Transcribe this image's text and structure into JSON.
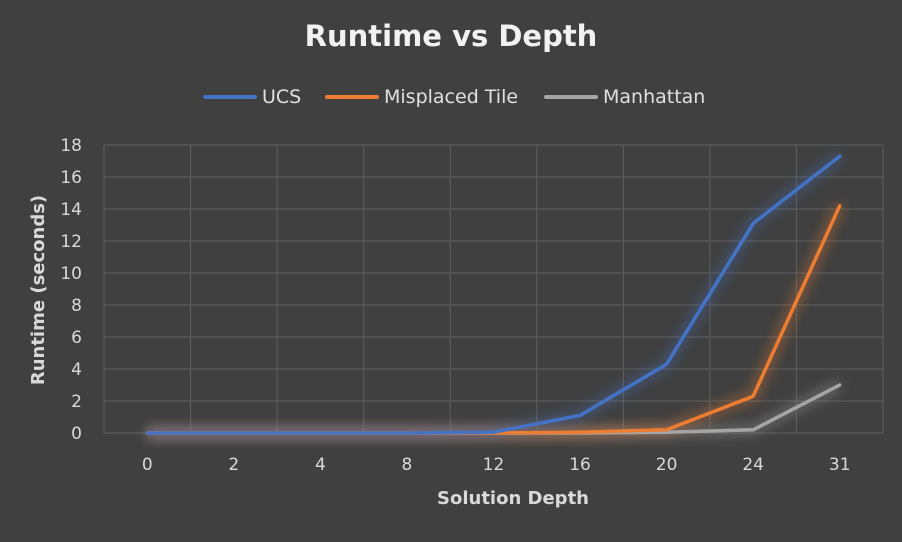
{
  "chart_data": {
    "type": "line",
    "title": "Runtime vs Depth",
    "xlabel": "Solution Depth",
    "ylabel": "Runtime (seconds)",
    "categories": [
      "0",
      "2",
      "4",
      "8",
      "12",
      "16",
      "20",
      "24",
      "31"
    ],
    "ylim": [
      0,
      18
    ],
    "yticks": [
      0,
      2,
      4,
      6,
      8,
      10,
      12,
      14,
      16,
      18
    ],
    "grid": true,
    "legend_position": "top",
    "series": [
      {
        "name": "UCS",
        "color": "#4472C4",
        "values": [
          0,
          0,
          0,
          0,
          0.05,
          1.1,
          4.3,
          13.1,
          17.3
        ]
      },
      {
        "name": "Misplaced Tile",
        "color": "#ED7D31",
        "values": [
          0,
          0,
          0,
          0,
          0,
          0.05,
          0.2,
          2.3,
          14.2
        ]
      },
      {
        "name": "Manhattan",
        "color": "#A5A5A5",
        "values": [
          0,
          0,
          0,
          0,
          0,
          0,
          0.05,
          0.2,
          3.0
        ]
      }
    ]
  }
}
